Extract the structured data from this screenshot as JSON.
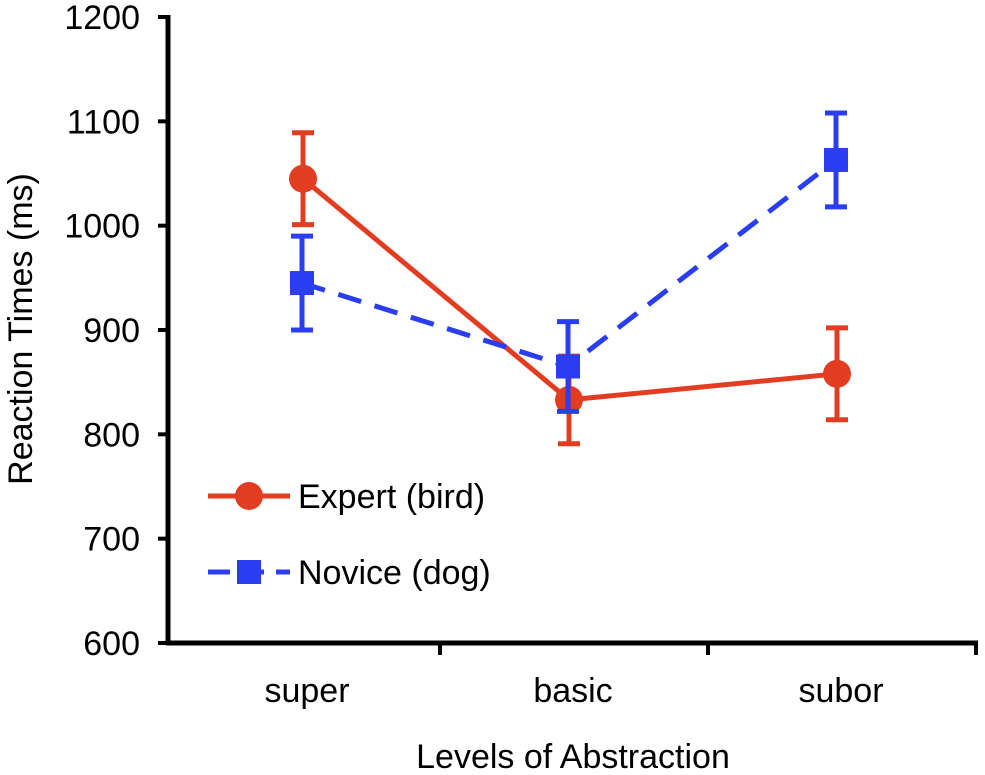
{
  "chart_data": {
    "type": "line",
    "title": "",
    "xlabel": "Levels of Abstraction",
    "ylabel": "Reaction Times (ms)",
    "ylim": [
      600,
      1200
    ],
    "yticks": [
      600,
      700,
      800,
      900,
      1000,
      1100,
      1200
    ],
    "ytick_labels": [
      "600",
      "700",
      "800",
      "900",
      "1000",
      "1100",
      "1200"
    ],
    "categories": [
      "super",
      "basic",
      "subor"
    ],
    "grid": false,
    "legend_position": "bottom-left",
    "series": [
      {
        "name": "Expert (bird)",
        "color": "#e23d20",
        "marker": "circle",
        "line_style": "solid",
        "values": [
          1045,
          833,
          858
        ],
        "errors": [
          44,
          42,
          44
        ]
      },
      {
        "name": "Novice (dog)",
        "color": "#2b3df0",
        "marker": "square",
        "line_style": "dashed",
        "values": [
          945,
          865,
          1063
        ],
        "errors": [
          45,
          43,
          45
        ]
      }
    ]
  }
}
